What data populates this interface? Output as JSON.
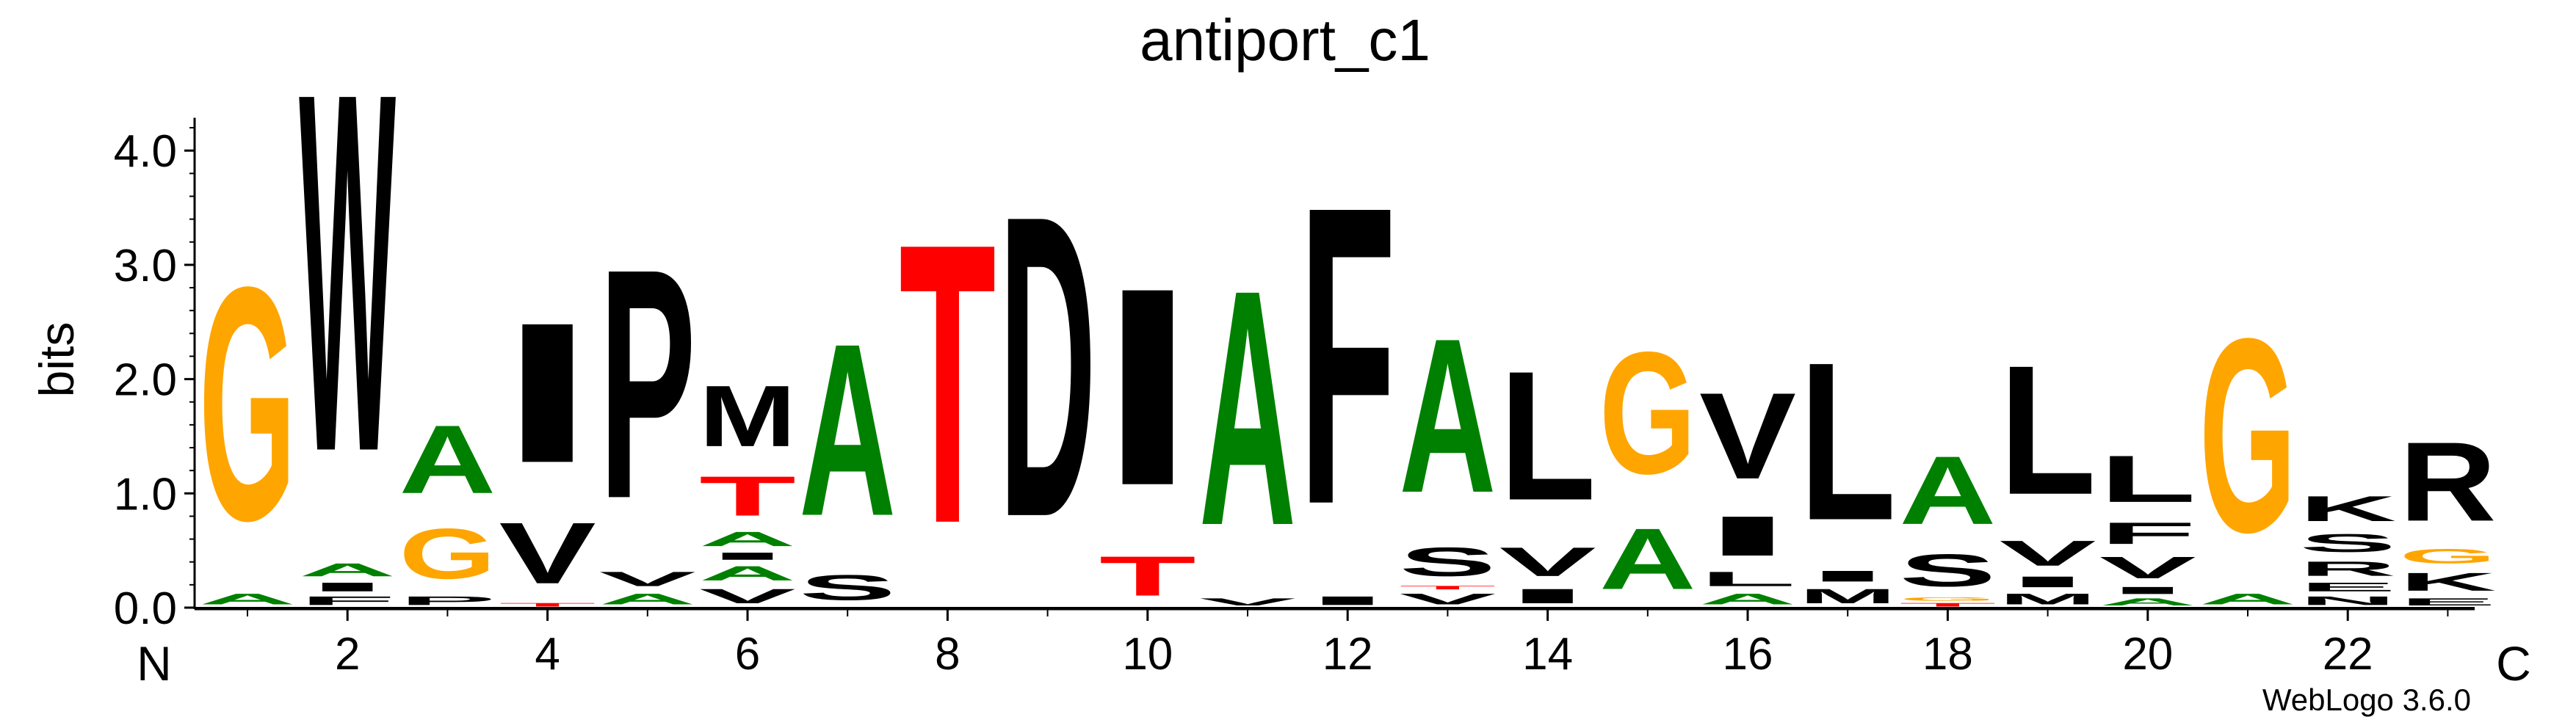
{
  "chart_data": {
    "type": "sequence-logo",
    "title": "antiport_c1",
    "ylabel": "bits",
    "ylim": [
      0,
      4.3
    ],
    "yticks": [
      "0.0",
      "1.0",
      "2.0",
      "3.0",
      "4.0"
    ],
    "xticks": [
      "2",
      "4",
      "6",
      "8",
      "10",
      "12",
      "14",
      "16",
      "18",
      "20",
      "22"
    ],
    "n_label": "N",
    "c_label": "C",
    "footer": "WebLogo 3.6.0",
    "colors": {
      "green": "#008000",
      "orange": "#FFA500",
      "red": "#FF0000",
      "black": "#000000"
    },
    "positions": [
      {
        "pos": 1,
        "letters": [
          [
            "A",
            0.15,
            "green"
          ],
          [
            "G",
            3.25,
            "orange"
          ]
        ]
      },
      {
        "pos": 2,
        "letters": [
          [
            "F",
            0.12,
            "black"
          ],
          [
            "I",
            0.12,
            "black"
          ],
          [
            "A",
            0.18,
            "green"
          ],
          [
            "W",
            5.0,
            "black"
          ]
        ]
      },
      {
        "pos": 3,
        "letters": [
          [
            "P",
            0.12,
            "black"
          ],
          [
            "G",
            0.7,
            "orange"
          ],
          [
            "A",
            0.95,
            "green"
          ]
        ]
      },
      {
        "pos": 4,
        "letters": [
          [
            "T",
            0.05,
            "red"
          ],
          [
            "V",
            0.85,
            "black"
          ],
          [
            "I",
            1.95,
            "black"
          ]
        ]
      },
      {
        "pos": 5,
        "letters": [
          [
            "A",
            0.15,
            "green"
          ],
          [
            "V",
            0.2,
            "black"
          ],
          [
            "P",
            3.2,
            "black"
          ]
        ]
      },
      {
        "pos": 6,
        "letters": [
          [
            "V",
            0.2,
            "black"
          ],
          [
            "A",
            0.2,
            "green"
          ],
          [
            "I",
            0.1,
            "black"
          ],
          [
            "A",
            0.2,
            "green"
          ],
          [
            "T",
            0.55,
            "red"
          ],
          [
            "M",
            0.85,
            "black"
          ]
        ]
      },
      {
        "pos": 7,
        "letters": [
          [
            "S",
            0.35,
            "black"
          ],
          [
            "A",
            2.4,
            "green"
          ]
        ]
      },
      {
        "pos": 8,
        "letters": [
          [
            "T",
            3.9,
            "red"
          ]
        ]
      },
      {
        "pos": 9,
        "letters": [
          [
            "D",
            4.2,
            "black"
          ]
        ]
      },
      {
        "pos": 10,
        "letters": [
          [
            "T",
            0.55,
            "red"
          ],
          [
            "I",
            2.75,
            "black"
          ]
        ]
      },
      {
        "pos": 11,
        "letters": [
          [
            "V",
            0.1,
            "black"
          ],
          [
            "A",
            3.28,
            "green"
          ]
        ]
      },
      {
        "pos": 12,
        "letters": [
          [
            "I",
            0.12,
            "black"
          ],
          [
            "F",
            4.15,
            "black"
          ]
        ]
      },
      {
        "pos": 13,
        "letters": [
          [
            "V",
            0.15,
            "black"
          ],
          [
            "T",
            0.05,
            "red"
          ],
          [
            "S",
            0.4,
            "black"
          ],
          [
            "A",
            2.15,
            "green"
          ]
        ]
      },
      {
        "pos": 14,
        "letters": [
          [
            "I",
            0.2,
            "black"
          ],
          [
            "V",
            0.4,
            "black"
          ],
          [
            "L",
            1.8,
            "black"
          ]
        ]
      },
      {
        "pos": 15,
        "letters": [
          [
            "A",
            0.85,
            "green"
          ],
          [
            "G",
            1.7,
            "orange"
          ]
        ]
      },
      {
        "pos": 16,
        "letters": [
          [
            "A",
            0.15,
            "green"
          ],
          [
            "L",
            0.2,
            "black"
          ],
          [
            "I",
            0.55,
            "black"
          ],
          [
            "V",
            1.2,
            "black"
          ]
        ]
      },
      {
        "pos": 17,
        "letters": [
          [
            "M",
            0.2,
            "black"
          ],
          [
            "I",
            0.15,
            "black"
          ],
          [
            "L",
            2.2,
            "black"
          ]
        ]
      },
      {
        "pos": 18,
        "letters": [
          [
            "T",
            0.05,
            "red"
          ],
          [
            "G",
            0.05,
            "orange"
          ],
          [
            "S",
            0.45,
            "black"
          ],
          [
            "A",
            0.95,
            "green"
          ]
        ]
      },
      {
        "pos": 19,
        "letters": [
          [
            "M",
            0.15,
            "black"
          ],
          [
            "I",
            0.15,
            "black"
          ],
          [
            "V",
            0.35,
            "black"
          ],
          [
            "L",
            1.8,
            "black"
          ]
        ]
      },
      {
        "pos": 20,
        "letters": [
          [
            "A",
            0.1,
            "green"
          ],
          [
            "I",
            0.1,
            "black"
          ],
          [
            "V",
            0.3,
            "black"
          ],
          [
            "F",
            0.3,
            "black"
          ],
          [
            "L",
            0.65,
            "black"
          ]
        ]
      },
      {
        "pos": 21,
        "letters": [
          [
            "A",
            0.15,
            "green"
          ],
          [
            "G",
            2.7,
            "orange"
          ]
        ]
      },
      {
        "pos": 22,
        "letters": [
          [
            "N",
            0.12,
            "black"
          ],
          [
            "E",
            0.12,
            "black"
          ],
          [
            "R",
            0.2,
            "black"
          ],
          [
            "S",
            0.25,
            "black"
          ],
          [
            "K",
            0.35,
            "black"
          ]
        ]
      },
      {
        "pos": 23,
        "letters": [
          [
            "E",
            0.1,
            "black"
          ],
          [
            "K",
            0.25,
            "black"
          ],
          [
            "G",
            0.2,
            "orange"
          ],
          [
            "R",
            1.1,
            "black"
          ]
        ]
      }
    ]
  }
}
